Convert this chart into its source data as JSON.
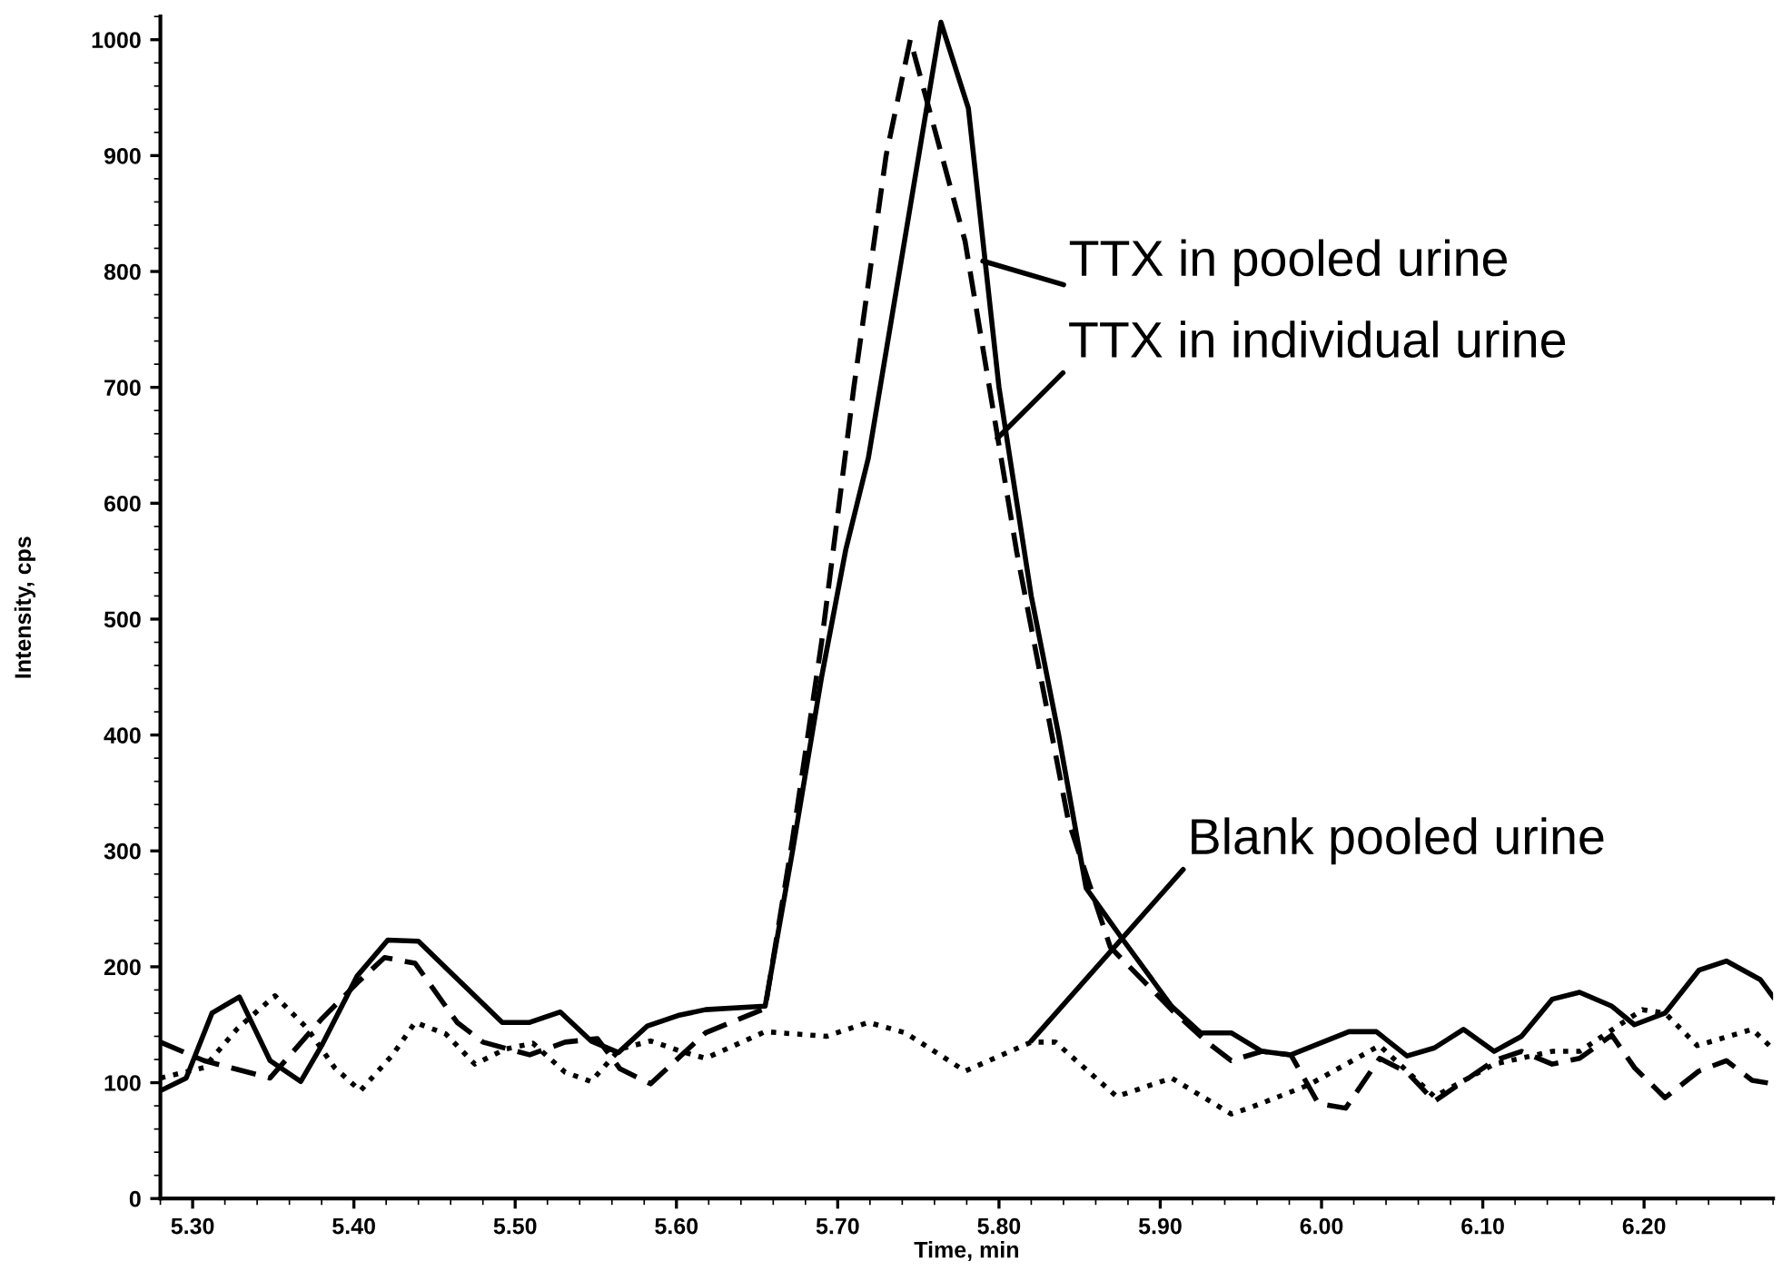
{
  "chart_data": {
    "type": "line",
    "xlabel": "Time, min",
    "ylabel": "Intensity, cps",
    "xlim": [
      5.28,
      6.28
    ],
    "ylim": [
      0,
      1020
    ],
    "xticks": [
      {
        "value": 5.3,
        "label": "5.30"
      },
      {
        "value": 5.4,
        "label": "5.40"
      },
      {
        "value": 5.5,
        "label": "5.50"
      },
      {
        "value": 5.6,
        "label": "5.60"
      },
      {
        "value": 5.7,
        "label": "5.70"
      },
      {
        "value": 5.8,
        "label": "5.80"
      },
      {
        "value": 5.9,
        "label": "5.90"
      },
      {
        "value": 6.0,
        "label": "6.00"
      },
      {
        "value": 6.1,
        "label": "6.10"
      },
      {
        "value": 6.2,
        "label": "6.20"
      }
    ],
    "yticks": [
      0,
      100,
      200,
      300,
      400,
      500,
      600,
      700,
      800,
      900,
      1000
    ],
    "grid": false,
    "legend": false,
    "marker": "none",
    "series": [
      {
        "color": "#000000",
        "line_style": "solid",
        "x": [
          5.28,
          5.296,
          5.312,
          5.329,
          5.348,
          5.367,
          5.38,
          5.402,
          5.421,
          5.44,
          5.492,
          5.509,
          5.528,
          5.547,
          5.564,
          5.582,
          5.601,
          5.618,
          5.655,
          5.672,
          5.69,
          5.705,
          5.719,
          5.764,
          5.781,
          5.8,
          5.82,
          5.837,
          5.854,
          5.876,
          5.907,
          5.925,
          5.944,
          5.963,
          5.981,
          6.017,
          6.034,
          6.053,
          6.07,
          6.088,
          6.107,
          6.124,
          6.143,
          6.16,
          6.18,
          6.194,
          6.213,
          6.234,
          6.251,
          6.272,
          6.28
        ],
        "values": [
          93,
          104,
          160,
          174,
          119,
          101,
          132,
          192,
          223,
          222,
          152,
          152,
          161,
          136,
          126,
          149,
          158,
          163,
          166,
          300,
          450,
          560,
          639,
          1015,
          941,
          700,
          520,
          400,
          268,
          225,
          166,
          143,
          143,
          127,
          124,
          144,
          144,
          123,
          130,
          146,
          127,
          140,
          172,
          178,
          166,
          150,
          160,
          197,
          205,
          189,
          174
        ]
      },
      {
        "color": "#000000",
        "line_style": "dashed",
        "x": [
          5.28,
          5.307,
          5.348,
          5.38,
          5.402,
          5.419,
          5.438,
          5.464,
          5.48,
          5.509,
          5.531,
          5.551,
          5.565,
          5.584,
          5.618,
          5.655,
          5.672,
          5.69,
          5.71,
          5.73,
          5.745,
          5.779,
          5.811,
          5.843,
          5.869,
          5.907,
          5.929,
          5.944,
          5.963,
          5.981,
          5.998,
          6.015,
          6.036,
          6.053,
          6.07,
          6.107,
          6.124,
          6.143,
          6.16,
          6.18,
          6.194,
          6.213,
          6.234,
          6.251,
          6.267,
          6.28
        ],
        "values": [
          135,
          119,
          104,
          155,
          186,
          208,
          203,
          152,
          135,
          124,
          135,
          138,
          112,
          99,
          143,
          164,
          310,
          480,
          700,
          900,
          1000,
          826,
          558,
          326,
          217,
          163,
          135,
          119,
          127,
          124,
          82,
          78,
          121,
          109,
          84,
          119,
          127,
          116,
          121,
          141,
          113,
          87,
          110,
          119,
          102,
          99
        ]
      },
      {
        "color": "#000000",
        "line_style": "dotted",
        "x": [
          5.28,
          5.307,
          5.328,
          5.351,
          5.371,
          5.388,
          5.404,
          5.424,
          5.438,
          5.457,
          5.475,
          5.494,
          5.511,
          5.531,
          5.547,
          5.565,
          5.584,
          5.603,
          5.618,
          5.655,
          5.693,
          5.719,
          5.742,
          5.779,
          5.82,
          5.835,
          5.873,
          5.907,
          5.944,
          5.955,
          5.992,
          6.036,
          6.07,
          6.107,
          6.143,
          6.16,
          6.199,
          6.213,
          6.233,
          6.267,
          6.28
        ],
        "values": [
          104,
          113,
          147,
          175,
          147,
          113,
          93,
          124,
          152,
          142,
          116,
          129,
          134,
          109,
          101,
          129,
          136,
          127,
          121,
          144,
          140,
          152,
          143,
          110,
          135,
          135,
          88,
          104,
          73,
          78,
          98,
          132,
          88,
          116,
          127,
          127,
          163,
          160,
          132,
          146,
          129
        ]
      }
    ],
    "annotations": [
      {
        "text": "TTX in pooled urine",
        "x": 5.79,
        "y": 809
      },
      {
        "text": "TTX in individual urine",
        "x": 5.799,
        "y": 656
      },
      {
        "text": "Blank pooled urine",
        "x": 5.82,
        "y": 136
      }
    ]
  }
}
